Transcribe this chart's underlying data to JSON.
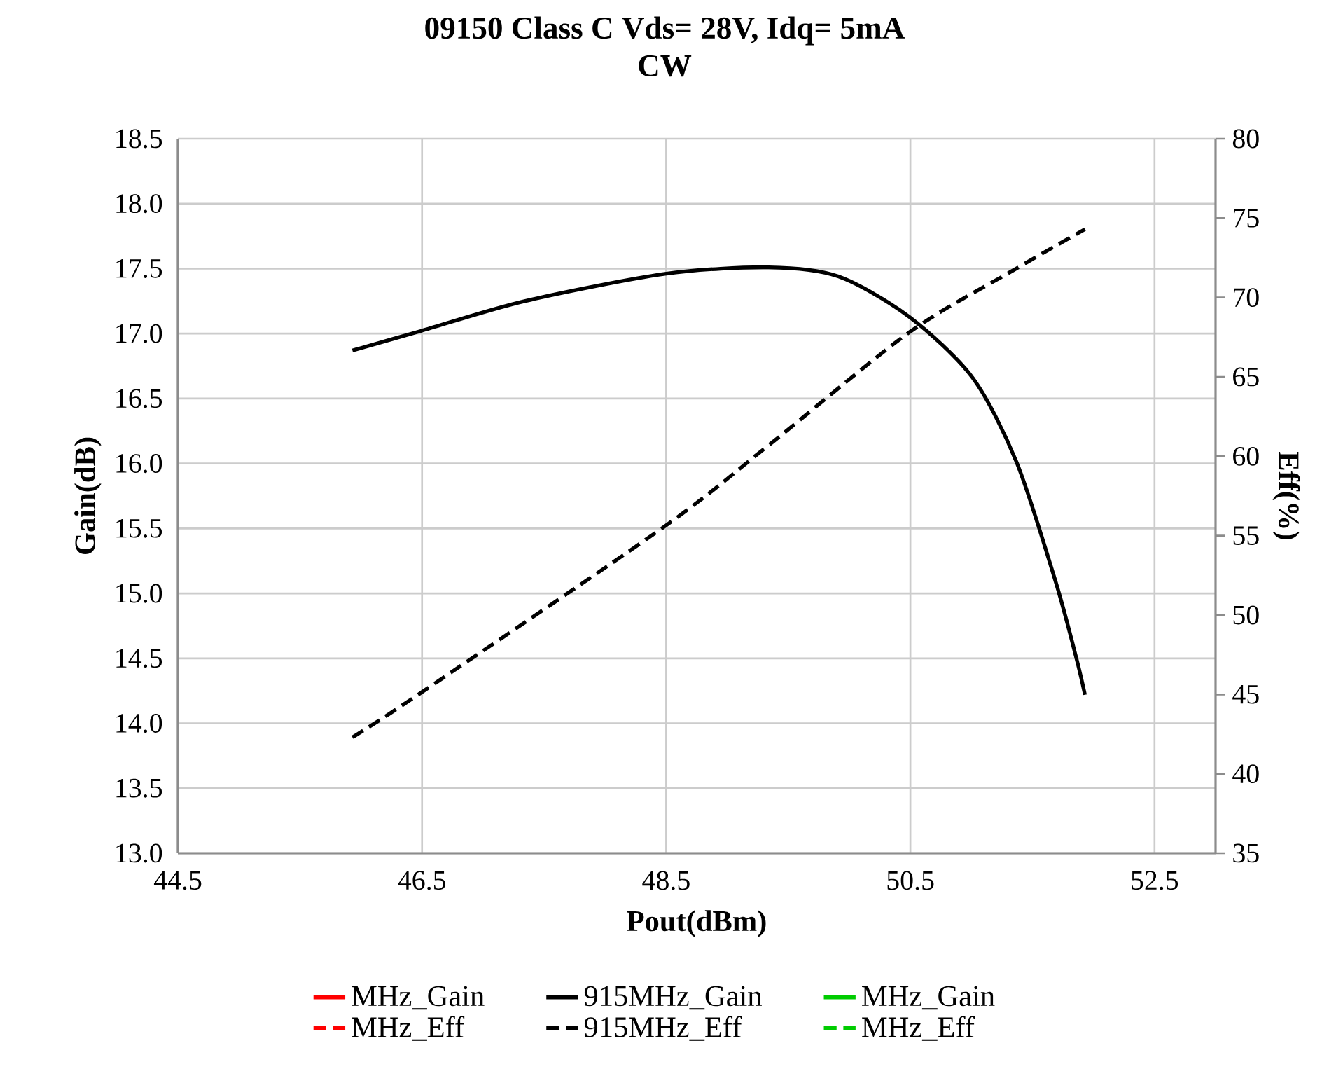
{
  "chart_data": {
    "type": "line",
    "title": "09150 Class C Vds= 28V, Idq= 5mA",
    "subtitle": "CW",
    "xlabel": "Pout(dBm)",
    "ylabel": "Gain(dB)",
    "y2label": "Eff(%)",
    "xlim": [
      44.5,
      53
    ],
    "xticks": [
      44.5,
      46.5,
      48.5,
      50.5,
      52.5
    ],
    "ylim": [
      13,
      18.5
    ],
    "yticks": [
      {
        "value": 13,
        "label": "13.0"
      },
      13.5,
      {
        "value": 14,
        "label": "14.0"
      },
      14.5,
      {
        "value": 15,
        "label": "15.0"
      },
      15.5,
      {
        "value": 16,
        "label": "16.0"
      },
      16.5,
      {
        "value": 17,
        "label": "17.0"
      },
      17.5,
      {
        "value": 18,
        "label": "18.0"
      },
      18.5
    ],
    "y2lim": [
      35,
      80
    ],
    "y2ticks": [
      35,
      40,
      45,
      50,
      55,
      60,
      65,
      70,
      75,
      80
    ],
    "grid": true,
    "legend": "bottom",
    "marker": "none",
    "series": [
      {
        "name": "MHz_Gain",
        "color": "#ff0000",
        "line_style": "solid"
      },
      {
        "name": "915MHz_Gain",
        "color": "#000000",
        "line_style": "solid",
        "x": [
          45.93,
          46.49,
          47.34,
          48.49,
          49.34,
          49.91,
          50.49,
          51.01,
          51.37,
          51.69,
          51.86,
          51.93
        ],
        "values": [
          16.87,
          17.02,
          17.25,
          17.46,
          17.51,
          17.44,
          17.13,
          16.66,
          16.01,
          15.09,
          14.5,
          14.22
        ]
      },
      {
        "name": "MHz_Gain",
        "color": "#00cc00",
        "line_style": "solid"
      },
      {
        "name": "MHz_Eff",
        "color": "#ff0000",
        "line_style": "dashed",
        "axis": "y2"
      },
      {
        "name": "915MHz_Eff",
        "color": "#000000",
        "line_style": "dashed",
        "axis": "y2",
        "x": [
          45.93,
          46.49,
          48.49,
          49.34,
          50.49,
          51.34,
          51.93
        ],
        "values": [
          42.3,
          45.1,
          55.6,
          60.7,
          67.8,
          71.7,
          74.3
        ]
      },
      {
        "name": "MHz_Eff",
        "color": "#00cc00",
        "line_style": "dashed",
        "axis": "y2"
      }
    ]
  }
}
